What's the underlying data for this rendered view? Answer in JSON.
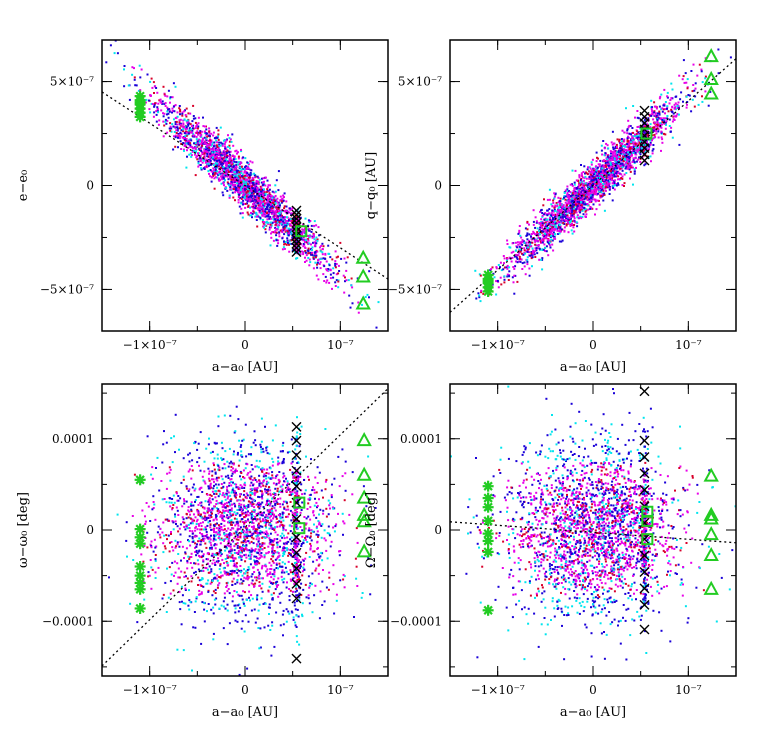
{
  "colors": {
    "background": "#ffffff",
    "clone_cyan": "#00e5ee",
    "clone_blue": "#1a00d8",
    "clone_magenta": "#e800e8",
    "clone_red": "#d8002a",
    "cross": "#000000",
    "marker_green": "#22cc22",
    "trend_line": "#000000"
  },
  "chart_data": [
    {
      "id": "e_vs_a",
      "type": "scatter",
      "xlabel": "a−a₀ [AU]",
      "ylabel": "e−e₀",
      "xlim": [
        -1.5e-07,
        1.5e-07
      ],
      "ylim": [
        -7e-07,
        7e-07
      ],
      "xticks": [
        {
          "v": -1e-07,
          "label": "−1×10⁻⁷"
        },
        {
          "v": 0,
          "label": "0"
        },
        {
          "v": 1e-07,
          "label": "10⁻⁷"
        }
      ],
      "yticks": [
        {
          "v": 5e-07,
          "label": "5×10⁻⁷"
        },
        {
          "v": 0,
          "label": "0"
        },
        {
          "v": -5e-07,
          "label": "−5×10⁻⁷"
        }
      ],
      "xminor": 5e-08,
      "yminor": 2.5e-07,
      "cloud": {
        "slope": -4.2,
        "spread_along": 4.6e-08,
        "spread_across": 1.05e-07,
        "xsel": 5.4e-08,
        "xjitter": 1.6e-09
      },
      "trend_line": [
        [
          -1.5e-07,
          4.5e-07
        ],
        [
          1.5e-07,
          -4.5e-07
        ]
      ],
      "series": [
        {
          "name": "crosses",
          "marker": "x",
          "points": [
            [
              5.4e-08,
              -1.2e-07
            ],
            [
              5.4e-08,
              -1.4e-07
            ],
            [
              5.4e-08,
              -1.6e-07
            ],
            [
              5.4e-08,
              -1.8e-07
            ],
            [
              5.4e-08,
              -2e-07
            ],
            [
              5.4e-08,
              -2.2e-07
            ],
            [
              5.4e-08,
              -2.4e-07
            ],
            [
              5.4e-08,
              -2.6e-07
            ],
            [
              5.4e-08,
              -2.8e-07
            ],
            [
              5.4e-08,
              -3e-07
            ],
            [
              5.4e-08,
              -3.2e-07
            ]
          ]
        },
        {
          "name": "stars",
          "marker": "*",
          "points": [
            [
              -1.1e-07,
              4.3e-07
            ],
            [
              -1.1e-07,
              4.1e-07
            ],
            [
              -1.1e-07,
              3.9e-07
            ],
            [
              -1.1e-07,
              3.7e-07
            ],
            [
              -1.1e-07,
              3.5e-07
            ],
            [
              -1.1e-07,
              3.3e-07
            ],
            [
              -1.1e-07,
              4e-07
            ]
          ]
        },
        {
          "name": "squares",
          "marker": "square",
          "points": [
            [
              5.9e-08,
              -2.2e-07
            ]
          ]
        },
        {
          "name": "triangles",
          "marker": "triangle",
          "points": [
            [
              1.24e-07,
              -3.5e-07
            ],
            [
              1.24e-07,
              -4.4e-07
            ],
            [
              1.24e-07,
              -5.7e-07
            ]
          ]
        }
      ]
    },
    {
      "id": "q_vs_a",
      "type": "scatter",
      "xlabel": "a−a₀ [AU]",
      "ylabel": "q−q₀ [AU]",
      "xlim": [
        -1.5e-07,
        1.5e-07
      ],
      "ylim": [
        -7e-07,
        7e-07
      ],
      "xticks": [
        {
          "v": -1e-07,
          "label": "−1×10⁻⁷"
        },
        {
          "v": 0,
          "label": "0"
        },
        {
          "v": 1e-07,
          "label": "10⁻⁷"
        }
      ],
      "yticks": [
        {
          "v": 5e-07,
          "label": "5×10⁻⁷"
        },
        {
          "v": 0,
          "label": "0"
        },
        {
          "v": -5e-07,
          "label": "−5×10⁻⁷"
        }
      ],
      "xminor": 5e-08,
      "yminor": 2.5e-07,
      "cloud": {
        "slope": 4.3,
        "spread_along": 4.6e-08,
        "spread_across": 1e-07,
        "xsel": 5.4e-08,
        "xjitter": 1.6e-09
      },
      "trend_line": [
        [
          -1.5e-07,
          -6.1e-07
        ],
        [
          1.5e-07,
          6.1e-07
        ]
      ],
      "series": [
        {
          "name": "crosses",
          "marker": "x",
          "points": [
            [
              5.4e-08,
              3.6e-07
            ],
            [
              5.4e-08,
              3.3e-07
            ],
            [
              5.4e-08,
              3e-07
            ],
            [
              5.4e-08,
              2.7e-07
            ],
            [
              5.4e-08,
              2.4e-07
            ],
            [
              5.4e-08,
              2.1e-07
            ],
            [
              5.4e-08,
              1.8e-07
            ],
            [
              5.4e-08,
              1.5e-07
            ],
            [
              5.4e-08,
              1.2e-07
            ]
          ]
        },
        {
          "name": "stars",
          "marker": "*",
          "points": [
            [
              -1.1e-07,
              -4.3e-07
            ],
            [
              -1.1e-07,
              -4.5e-07
            ],
            [
              -1.1e-07,
              -4.7e-07
            ],
            [
              -1.1e-07,
              -4.9e-07
            ],
            [
              -1.1e-07,
              -5.1e-07
            ],
            [
              -1.1e-07,
              -4.6e-07
            ]
          ]
        },
        {
          "name": "squares",
          "marker": "square",
          "points": [
            [
              5.6e-08,
              2.5e-07
            ]
          ]
        },
        {
          "name": "triangles",
          "marker": "triangle",
          "points": [
            [
              1.24e-07,
              6.2e-07
            ],
            [
              1.24e-07,
              5.1e-07
            ],
            [
              1.24e-07,
              4.4e-07
            ]
          ]
        }
      ]
    },
    {
      "id": "omega_vs_a",
      "type": "scatter",
      "xlabel": "a−a₀ [AU]",
      "ylabel": "ω−ω₀ [deg]",
      "xlim": [
        -1.5e-07,
        1.5e-07
      ],
      "ylim": [
        -0.00016,
        0.00016
      ],
      "xticks": [
        {
          "v": -1e-07,
          "label": "−1×10⁻⁷"
        },
        {
          "v": 0,
          "label": "0"
        },
        {
          "v": 1e-07,
          "label": "10⁻⁷"
        }
      ],
      "yticks": [
        {
          "v": 0.0001,
          "label": "0.0001"
        },
        {
          "v": 0,
          "label": "0"
        },
        {
          "v": -0.0001,
          "label": "−0.0001"
        }
      ],
      "xminor": 5e-08,
      "yminor": 5e-05,
      "cloud": {
        "slope": 0,
        "spread_x": 4.6e-08,
        "spread_y": 4.6e-05,
        "xsel": 5.4e-08,
        "xjitter": 1.6e-09
      },
      "trend_line": [
        [
          -1.5e-07,
          -0.000149
        ],
        [
          1.5e-07,
          0.000155
        ]
      ],
      "series": [
        {
          "name": "crosses",
          "marker": "x",
          "points": [
            [
              5.4e-08,
              0.000113
            ],
            [
              5.4e-08,
              9.8e-05
            ],
            [
              5.4e-08,
              8.2e-05
            ],
            [
              5.4e-08,
              6.5e-05
            ],
            [
              5.4e-08,
              4.8e-05
            ],
            [
              5.4e-08,
              3e-05
            ],
            [
              5.4e-08,
              1.2e-05
            ],
            [
              5.4e-08,
              -8e-06
            ],
            [
              5.4e-08,
              -2.5e-05
            ],
            [
              5.4e-08,
              -4.2e-05
            ],
            [
              5.4e-08,
              -5.9e-05
            ],
            [
              5.4e-08,
              -7.5e-05
            ],
            [
              5.4e-08,
              -0.000141
            ]
          ]
        },
        {
          "name": "stars",
          "marker": "*",
          "points": [
            [
              -1.1e-07,
              5.5e-05
            ],
            [
              -1.1e-07,
              1e-06
            ],
            [
              -1.1e-07,
              -8e-06
            ],
            [
              -1.1e-07,
              -1.5e-05
            ],
            [
              -1.1e-07,
              -4e-05
            ],
            [
              -1.1e-07,
              -5e-05
            ],
            [
              -1.1e-07,
              -5.8e-05
            ],
            [
              -1.1e-07,
              -6.5e-05
            ],
            [
              -1.1e-07,
              -8.6e-05
            ]
          ]
        },
        {
          "name": "squares",
          "marker": "square",
          "points": [
            [
              5.7e-08,
              3e-05
            ],
            [
              5.7e-08,
              2e-06
            ]
          ]
        },
        {
          "name": "triangles",
          "marker": "triangle",
          "points": [
            [
              1.25e-07,
              9.8e-05
            ],
            [
              1.25e-07,
              6e-05
            ],
            [
              1.25e-07,
              3.5e-05
            ],
            [
              1.25e-07,
              1.6e-05
            ],
            [
              1.25e-07,
              9e-06
            ],
            [
              1.25e-07,
              -2.4e-05
            ]
          ]
        }
      ]
    },
    {
      "id": "Omega_vs_a",
      "type": "scatter",
      "xlabel": "a−a₀ [AU]",
      "ylabel": "Ω−Ω₀ [deg]",
      "xlim": [
        -1.5e-07,
        1.5e-07
      ],
      "ylim": [
        -0.00016,
        0.00016
      ],
      "xticks": [
        {
          "v": -1e-07,
          "label": "−1×10⁻⁷"
        },
        {
          "v": 0,
          "label": "0"
        },
        {
          "v": 1e-07,
          "label": "10⁻⁷"
        }
      ],
      "yticks": [
        {
          "v": 0.0001,
          "label": "0.0001"
        },
        {
          "v": 0,
          "label": "0"
        },
        {
          "v": -0.0001,
          "label": "−0.0001"
        }
      ],
      "xminor": 5e-08,
      "yminor": 5e-05,
      "cloud": {
        "slope": 0,
        "spread_x": 4.6e-08,
        "spread_y": 4.6e-05,
        "xsel": 5.4e-08,
        "xjitter": 1.6e-09
      },
      "trend_line": [
        [
          -1.5e-07,
          9e-06
        ],
        [
          1.5e-07,
          -1.4e-05
        ]
      ],
      "series": [
        {
          "name": "crosses",
          "marker": "x",
          "points": [
            [
              5.4e-08,
              0.000152
            ],
            [
              5.4e-08,
              9.8e-05
            ],
            [
              5.4e-08,
              8e-05
            ],
            [
              5.4e-08,
              6.2e-05
            ],
            [
              5.4e-08,
              4.4e-05
            ],
            [
              5.4e-08,
              2.6e-05
            ],
            [
              5.4e-08,
              8e-06
            ],
            [
              5.4e-08,
              -1e-05
            ],
            [
              5.4e-08,
              -2.8e-05
            ],
            [
              5.4e-08,
              -4.6e-05
            ],
            [
              5.4e-08,
              -6.4e-05
            ],
            [
              5.4e-08,
              -8.2e-05
            ],
            [
              5.4e-08,
              -0.000109
            ]
          ]
        },
        {
          "name": "stars",
          "marker": "*",
          "points": [
            [
              -1.1e-07,
              4.8e-05
            ],
            [
              -1.1e-07,
              3.5e-05
            ],
            [
              -1.1e-07,
              2.5e-05
            ],
            [
              -1.1e-07,
              1e-05
            ],
            [
              -1.1e-07,
              -4e-06
            ],
            [
              -1.1e-07,
              -1.2e-05
            ],
            [
              -1.1e-07,
              -2.4e-05
            ],
            [
              -1.1e-07,
              -8.8e-05
            ]
          ]
        },
        {
          "name": "squares",
          "marker": "square",
          "points": [
            [
              5.7e-08,
              2e-05
            ],
            [
              5.7e-08,
              1e-05
            ],
            [
              5.7e-08,
              -1e-05
            ]
          ]
        },
        {
          "name": "triangles",
          "marker": "triangle",
          "points": [
            [
              1.24e-07,
              5.9e-05
            ],
            [
              1.24e-07,
              1.6e-05
            ],
            [
              1.24e-07,
              1.2e-05
            ],
            [
              1.24e-07,
              -5e-06
            ],
            [
              1.24e-07,
              -2.8e-05
            ],
            [
              1.24e-07,
              -6.5e-05
            ]
          ]
        }
      ]
    }
  ]
}
